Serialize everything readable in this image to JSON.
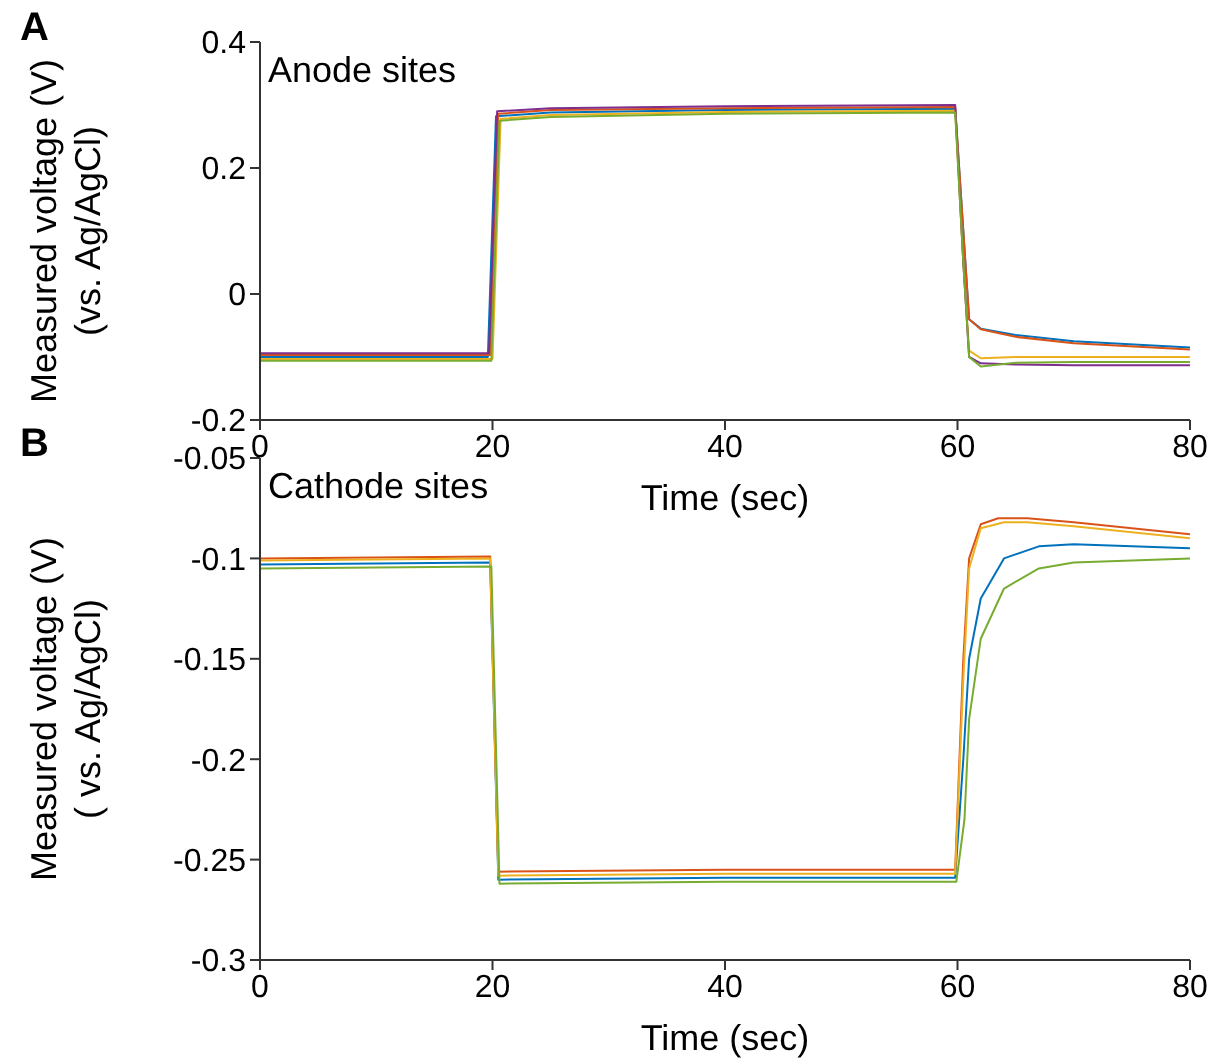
{
  "chart_data": [
    {
      "type": "line",
      "xlabel": "Time (sec)",
      "ylabel": "Measured voltage (V)\n(vs. Ag/AgCl)",
      "annotations": [
        "A",
        "Anode sites"
      ],
      "xlim": [
        0,
        80
      ],
      "xticks": [
        0,
        20,
        40,
        60,
        80
      ],
      "ylim": [
        -0.2,
        0.4
      ],
      "yticks": [
        -0.2,
        0,
        0.2,
        0.4
      ],
      "series": [
        {
          "color": "#0072bd",
          "x": [
            0,
            19.6,
            20.3,
            25,
            40,
            59.8,
            60.5,
            61,
            62,
            65,
            70,
            80
          ],
          "values": [
            -0.1,
            -0.1,
            0.282,
            0.288,
            0.292,
            0.294,
            0.1,
            -0.04,
            -0.055,
            -0.065,
            -0.075,
            -0.085
          ]
        },
        {
          "color": "#d95319",
          "x": [
            0,
            19.8,
            20.5,
            25,
            40,
            59.8,
            60.5,
            61,
            62,
            65,
            70,
            80
          ],
          "values": [
            -0.097,
            -0.097,
            0.286,
            0.292,
            0.295,
            0.297,
            0.1,
            -0.04,
            -0.056,
            -0.068,
            -0.078,
            -0.088
          ]
        },
        {
          "color": "#edb120",
          "x": [
            0,
            20,
            20.7,
            25,
            40,
            59.8,
            60.5,
            61,
            62,
            65,
            70,
            80
          ],
          "values": [
            -0.103,
            -0.103,
            0.278,
            0.284,
            0.289,
            0.291,
            0.05,
            -0.09,
            -0.102,
            -0.1,
            -0.1,
            -0.1
          ]
        },
        {
          "color": "#7e2f8e",
          "x": [
            0,
            19.7,
            20.4,
            25,
            40,
            59.8,
            60.5,
            61,
            62,
            65,
            70,
            80
          ],
          "values": [
            -0.094,
            -0.094,
            0.29,
            0.295,
            0.298,
            0.3,
            0.05,
            -0.1,
            -0.11,
            -0.112,
            -0.113,
            -0.113
          ]
        },
        {
          "color": "#77ac30",
          "x": [
            0,
            19.9,
            20.6,
            25,
            40,
            59.8,
            60.5,
            61,
            62,
            65,
            70,
            80
          ],
          "values": [
            -0.106,
            -0.106,
            0.275,
            0.281,
            0.286,
            0.288,
            0.05,
            -0.1,
            -0.115,
            -0.109,
            -0.108,
            -0.108
          ]
        }
      ]
    },
    {
      "type": "line",
      "xlabel": "Time (sec)",
      "ylabel": "Measured voltage (V)\n( vs. Ag/AgCl)",
      "annotations": [
        "B",
        "Cathode sites"
      ],
      "xlim": [
        0,
        80
      ],
      "xticks": [
        0,
        20,
        40,
        60,
        80
      ],
      "ylim": [
        -0.3,
        -0.05
      ],
      "yticks": [
        -0.3,
        -0.25,
        -0.2,
        -0.15,
        -0.1,
        -0.05
      ],
      "series": [
        {
          "color": "#0072bd",
          "x": [
            0,
            19.8,
            20.5,
            40,
            59.8,
            60.5,
            61,
            62,
            64,
            67,
            70,
            80
          ],
          "values": [
            -0.103,
            -0.102,
            -0.26,
            -0.259,
            -0.259,
            -0.2,
            -0.15,
            -0.12,
            -0.1,
            -0.094,
            -0.093,
            -0.095
          ]
        },
        {
          "color": "#d95319",
          "x": [
            0,
            19.8,
            20.5,
            40,
            59.8,
            60.5,
            61,
            62,
            63.5,
            66,
            70,
            80
          ],
          "values": [
            -0.1,
            -0.099,
            -0.256,
            -0.255,
            -0.255,
            -0.15,
            -0.1,
            -0.083,
            -0.08,
            -0.08,
            -0.082,
            -0.088
          ]
        },
        {
          "color": "#edb120",
          "x": [
            0,
            19.8,
            20.5,
            40,
            59.8,
            60.5,
            61,
            62,
            64,
            66,
            70,
            80
          ],
          "values": [
            -0.101,
            -0.1,
            -0.258,
            -0.257,
            -0.257,
            -0.16,
            -0.105,
            -0.085,
            -0.082,
            -0.082,
            -0.084,
            -0.09
          ]
        },
        {
          "color": "#77ac30",
          "x": [
            0,
            19.9,
            20.6,
            40,
            59.9,
            60.6,
            61,
            62,
            64,
            67,
            70,
            80
          ],
          "values": [
            -0.105,
            -0.104,
            -0.262,
            -0.261,
            -0.261,
            -0.23,
            -0.18,
            -0.14,
            -0.115,
            -0.105,
            -0.102,
            -0.1
          ]
        }
      ]
    }
  ]
}
